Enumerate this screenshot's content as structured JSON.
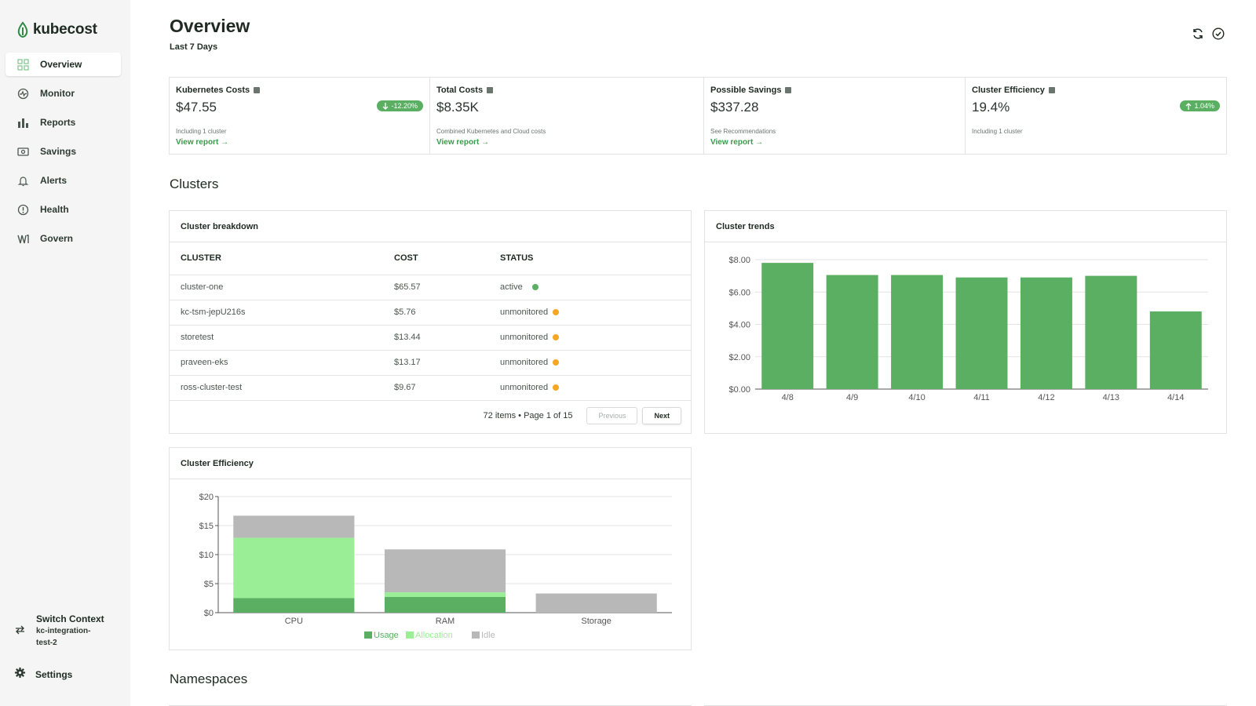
{
  "app": {
    "name": "kubecost"
  },
  "sidebar": {
    "items": [
      {
        "label": "Overview",
        "icon": "grid-icon",
        "active": true
      },
      {
        "label": "Monitor",
        "icon": "monitor-icon"
      },
      {
        "label": "Reports",
        "icon": "bar-chart-icon"
      },
      {
        "label": "Savings",
        "icon": "savings-icon"
      },
      {
        "label": "Alerts",
        "icon": "bell-icon"
      },
      {
        "label": "Health",
        "icon": "alert-circle-icon"
      },
      {
        "label": "Govern",
        "icon": "govern-icon"
      }
    ],
    "switch_context": {
      "title": "Switch Context",
      "context": "kc-integration-test-2"
    },
    "settings": "Settings"
  },
  "header": {
    "title": "Overview",
    "subtitle": "Last 7 Days"
  },
  "kpis": [
    {
      "title": "Kubernetes Costs",
      "value": "$47.55",
      "badge": "-12.20%",
      "badge_dir": "down",
      "sub": "Including 1 cluster",
      "link": "View report"
    },
    {
      "title": "Total Costs",
      "value": "$8.35K",
      "sub": "Combined Kubernetes and Cloud costs",
      "link": "View report"
    },
    {
      "title": "Possible Savings",
      "value": "$337.28",
      "sub": "See Recommendations",
      "link": "View report"
    },
    {
      "title": "Cluster Efficiency",
      "value": "19.4%",
      "badge": "1.04%",
      "badge_dir": "up",
      "sub": "Including 1 cluster"
    }
  ],
  "sections": {
    "clusters": "Clusters",
    "namespaces": "Namespaces"
  },
  "cluster_breakdown": {
    "title": "Cluster breakdown",
    "columns": [
      "CLUSTER",
      "COST",
      "STATUS"
    ],
    "rows": [
      {
        "cluster": "cluster-one",
        "cost": "$65.57",
        "status": "active"
      },
      {
        "cluster": "kc-tsm-jepU216s",
        "cost": "$5.76",
        "status": "unmonitored"
      },
      {
        "cluster": "storetest",
        "cost": "$13.44",
        "status": "unmonitored"
      },
      {
        "cluster": "praveen-eks",
        "cost": "$13.17",
        "status": "unmonitored"
      },
      {
        "cluster": "ross-cluster-test",
        "cost": "$9.67",
        "status": "unmonitored"
      }
    ],
    "status_colors": {
      "active": "#5aaf62",
      "unmonitored": "#f5a623"
    },
    "pagination": {
      "info": "72 items • Page 1 of 15",
      "prev": "Previous",
      "next": "Next"
    }
  },
  "colors": {
    "accent": "#5aaf62",
    "usage": "#5aaf62",
    "allocation": "#9aee95",
    "idle": "#b8b8b8"
  },
  "chart_data": [
    {
      "type": "bar",
      "title": "Cluster trends",
      "categories": [
        "4/8",
        "4/9",
        "4/10",
        "4/11",
        "4/12",
        "4/13",
        "4/14"
      ],
      "values": [
        7.8,
        7.05,
        7.05,
        6.9,
        6.9,
        7.0,
        4.8
      ],
      "ylim": [
        0,
        8
      ],
      "yticks": [
        "$0.00",
        "$2.00",
        "$4.00",
        "$6.00",
        "$8.00"
      ],
      "grid": true
    },
    {
      "type": "bar",
      "title": "Cluster Efficiency",
      "stacked": true,
      "categories": [
        "CPU",
        "RAM",
        "Storage"
      ],
      "series": [
        {
          "name": "Usage",
          "values": [
            2.5,
            2.7,
            0
          ]
        },
        {
          "name": "Allocation",
          "values": [
            10.4,
            0.8,
            0
          ]
        },
        {
          "name": "Idle",
          "values": [
            3.8,
            7.4,
            3.3
          ]
        }
      ],
      "ylim": [
        0,
        20
      ],
      "yticks": [
        "$0",
        "$5",
        "$10",
        "$15",
        "$20"
      ],
      "legend": "bottom",
      "grid": true
    }
  ]
}
